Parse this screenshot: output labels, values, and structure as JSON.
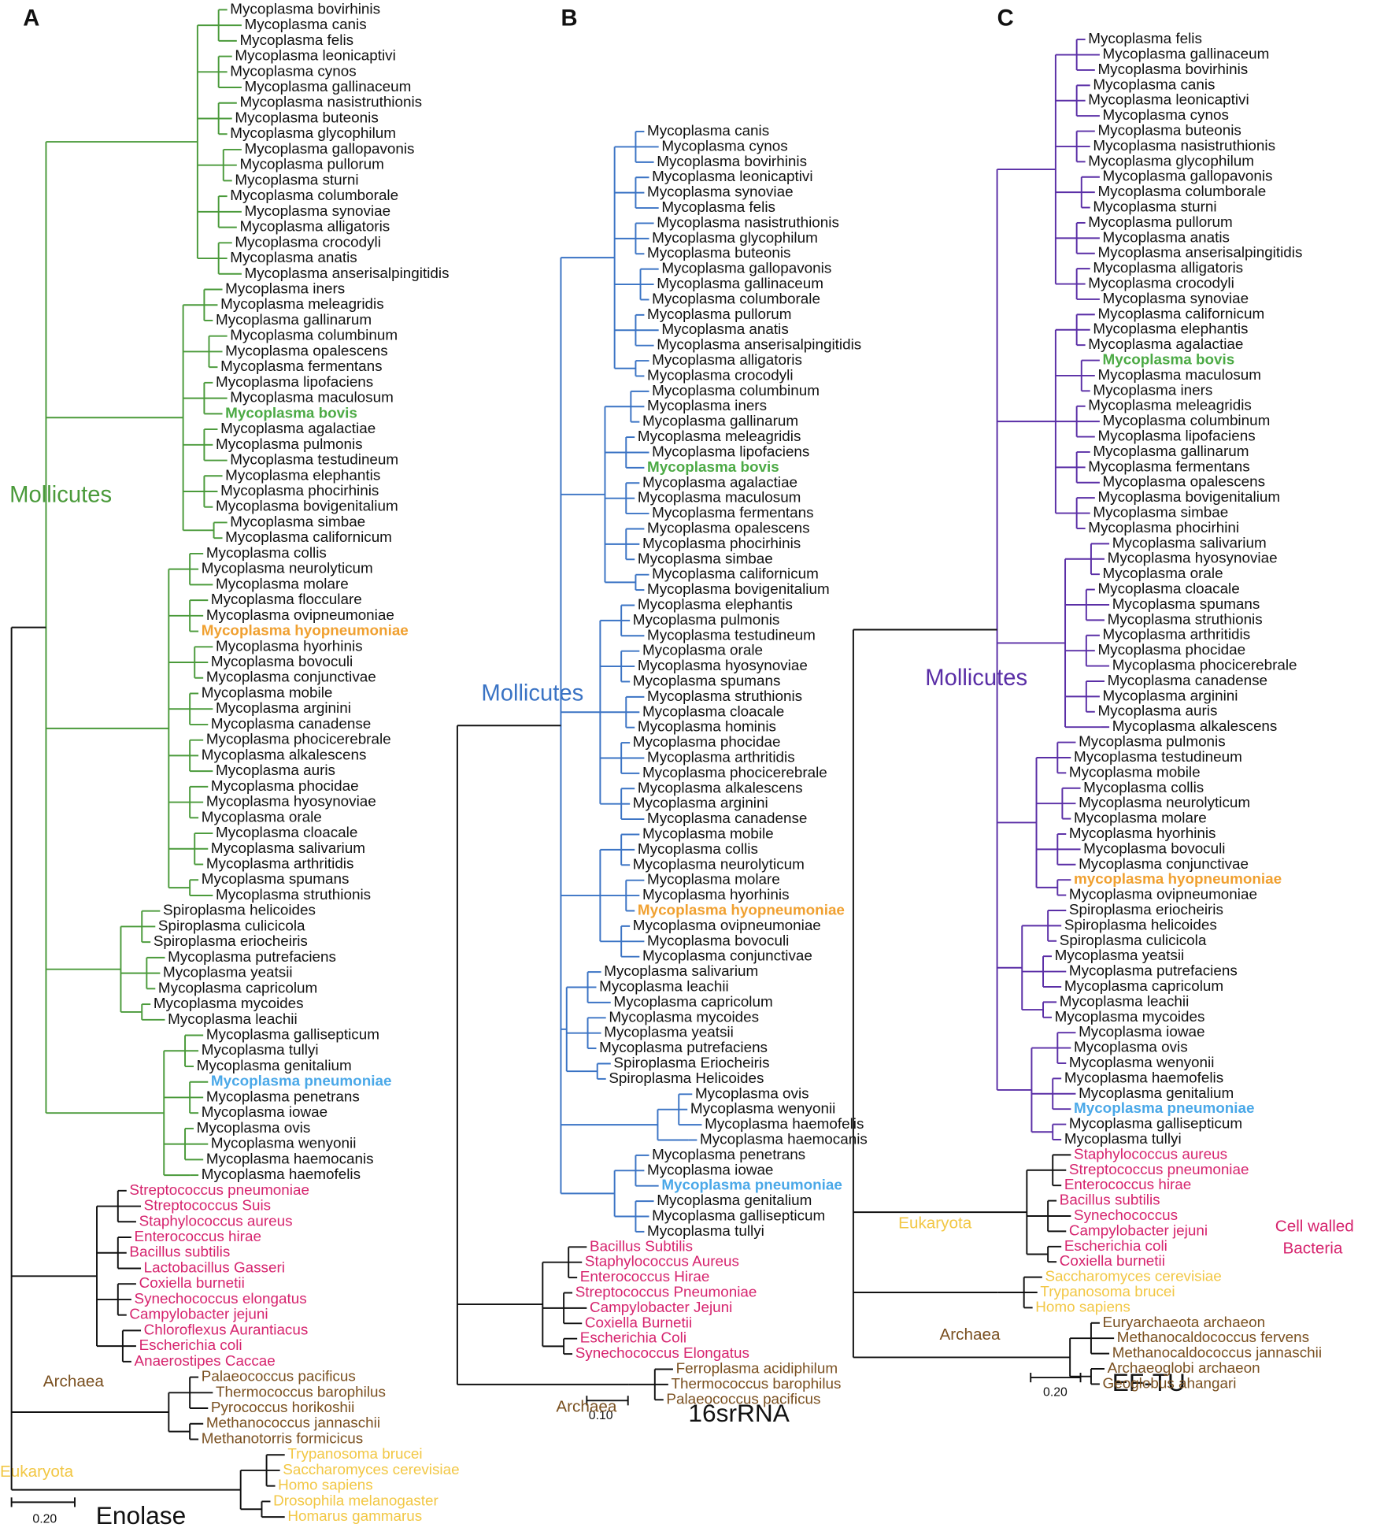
{
  "panels": [
    {
      "letter": "A",
      "title": "Enolase",
      "scale": "0.20",
      "color": "#4a9a3a",
      "clades": [
        {
          "text": "Mollicutes",
          "color": "#4a9a3a"
        },
        {
          "text": "Archaea",
          "color": "#7a5020"
        },
        {
          "text": "Eukaryota",
          "color": "#f2c744"
        }
      ],
      "sections": [
        {
          "color": "#111111",
          "labels": [
            "Mycoplasma bovirhinis",
            "Mycoplasma canis",
            "Mycoplasma felis",
            "Mycoplasma leonicaptivi",
            "Mycoplasma cynos",
            "Mycoplasma gallinaceum",
            "Mycoplasma nasistruthionis",
            "Mycoplasma buteonis",
            "Mycoplasma glycophilum",
            "Mycoplasma gallopavonis",
            "Mycoplasma pullorum",
            "Mycoplasma sturni",
            "Mycoplasma columborale",
            "Mycoplasma synoviae",
            "Mycoplasma alligatoris",
            "Mycoplasma crocodyli",
            "Mycoplasma anatis",
            "Mycoplasma anserisalpingitidis",
            "Mycoplasma iners",
            "Mycoplasma meleagridis",
            "Mycoplasma gallinarum",
            "Mycoplasma columbinum",
            "Mycoplasma opalescens",
            "Mycoplasma fermentans",
            "Mycoplasma lipofaciens",
            "Mycoplasma maculosum"
          ]
        },
        {
          "color": "#4caa45",
          "bold": true,
          "labels": [
            "Mycoplasma bovis"
          ]
        },
        {
          "color": "#111111",
          "labels": [
            "Mycoplasma agalactiae",
            "Mycoplasma pulmonis",
            "Mycoplasma testudineum",
            "Mycoplasma elephantis",
            "Mycoplasma phocirhinis",
            "Mycoplasma bovigenitalium",
            "Mycoplasma simbae",
            "Mycoplasma californicum",
            "Mycoplasma collis",
            "Mycoplasma neurolyticum",
            "Mycoplasma molare",
            "Mycoplasma flocculare",
            "Mycoplasma ovipneumoniae"
          ]
        },
        {
          "color": "#f0a030",
          "bold": true,
          "labels": [
            "Mycoplasma hyopneumoniae"
          ]
        },
        {
          "color": "#111111",
          "labels": [
            "Mycoplasma hyorhinis",
            "Mycoplasma bovoculi",
            "Mycoplasma conjunctivae",
            "Mycoplasma mobile",
            "Mycoplasma arginini",
            "Mycoplasma canadense",
            "Mycoplasma phocicerebrale",
            "Mycoplasma alkalescens",
            "Mycoplasma auris",
            "Mycoplasma phocidae",
            "Mycoplasma hyosynoviae",
            "Mycoplasma orale",
            "Mycoplasma cloacale",
            "Mycoplasma salivarium",
            "Mycoplasma arthritidis",
            "Mycoplasma spumans",
            "Mycoplasma struthionis",
            "Spiroplasma helicoides",
            "Spiroplasma culicicola",
            "Spiroplasma eriocheiris",
            "Mycoplasma putrefaciens",
            "Mycoplasma yeatsii",
            "Mycoplasma capricolum",
            "Mycoplasma mycoides",
            "Mycoplasma leachii",
            "Mycoplasma gallisepticum",
            "Mycoplasma tullyi",
            "Mycoplasma genitalium"
          ]
        },
        {
          "color": "#4aa8e8",
          "bold": true,
          "labels": [
            "Mycoplasma pneumoniae"
          ]
        },
        {
          "color": "#111111",
          "labels": [
            "Mycoplasma penetrans",
            "Mycoplasma iowae",
            "Mycoplasma ovis",
            "Mycoplasma wenyonii",
            "Mycoplasma haemocanis",
            "Mycoplasma haemofelis"
          ]
        },
        {
          "color": "#d6246e",
          "labels": [
            "Streptococcus pneumoniae",
            "Streptococcus Suis",
            "Staphylococcus aureus",
            "Enterococcus hirae",
            "Bacillus subtilis",
            "Lactobacillus Gasseri",
            "Coxiella burnetii",
            "Synechococcus elongatus",
            "Campylobacter jejuni",
            "Chloroflexus Aurantiacus",
            "Escherichia coli",
            "Anaerostipes Caccae"
          ]
        },
        {
          "color": "#7a5020",
          "labels": [
            "Palaeococcus pacificus",
            "Thermococcus barophilus",
            "Pyrococcus horikoshii",
            "Methanococcus jannaschii",
            "Methanotorris formicicus"
          ]
        },
        {
          "color": "#f2c744",
          "labels": [
            "Trypanosoma brucei",
            "Saccharomyces cerevisiae",
            "Homo sapiens",
            "Drosophila melanogaster",
            "Homarus gammarus"
          ]
        }
      ]
    },
    {
      "letter": "B",
      "title": "16srRNA",
      "scale": "0.10",
      "color": "#3a73c4",
      "clades": [
        {
          "text": "Mollicutes",
          "color": "#3a73c4"
        },
        {
          "text": "Archaea",
          "color": "#7a5020"
        }
      ],
      "sections": [
        {
          "color": "#111111",
          "labels": [
            "Mycoplasma canis",
            "Mycoplasma cynos",
            "Mycoplasma bovirhinis",
            "Mycoplasma leonicaptivi",
            "Mycoplasma synoviae",
            "Mycoplasma felis",
            "Mycoplasma nasistruthionis",
            "Mycoplasma glycophilum",
            "Mycoplasma buteonis",
            "Mycoplasma gallopavonis",
            "Mycoplasma gallinaceum",
            "Mycoplasma columborale",
            "Mycoplasma pullorum",
            "Mycoplasma anatis",
            "Mycoplasma anserisalpingitidis",
            "Mycoplasma alligatoris",
            "Mycoplasma crocodyli",
            "Mycoplasma columbinum",
            "Mycoplasma iners",
            "Mycoplasma gallinarum",
            "Mycoplasma meleagridis",
            "Mycoplasma lipofaciens"
          ]
        },
        {
          "color": "#4caa45",
          "bold": true,
          "labels": [
            "Mycoplasma bovis"
          ]
        },
        {
          "color": "#111111",
          "labels": [
            "Mycoplasma agalactiae",
            "Mycoplasma maculosum",
            "Mycoplasma fermentans",
            "Mycoplasma opalescens",
            "Mycoplasma phocirhinis",
            "Mycoplasma simbae",
            "Mycoplasma californicum",
            "Mycoplasma bovigenitalium",
            "Mycoplasma elephantis",
            "Mycoplasma pulmonis",
            "Mycoplasma testudineum",
            "Mycoplasma orale",
            "Mycoplasma hyosynoviae",
            "Mycoplasma spumans",
            "Mycoplasma struthionis",
            "Mycoplasma cloacale",
            "Mycoplasma hominis",
            "Mycoplasma phocidae",
            "Mycoplasma arthritidis",
            "Mycoplasma phocicerebrale",
            "Mycoplasma alkalescens",
            "Mycoplasma arginini",
            "Mycoplasma canadense",
            "Mycoplasma mobile",
            "Mycoplasma collis",
            "Mycoplasma neurolyticum",
            "Mycoplasma molare",
            "Mycoplasma hyorhinis"
          ]
        },
        {
          "color": "#f0a030",
          "bold": true,
          "labels": [
            "Mycoplasma hyopneumoniae"
          ]
        },
        {
          "color": "#111111",
          "labels": [
            "Mycoplasma ovipneumoniae",
            "Mycoplasma bovoculi",
            "Mycoplasma conjunctivae",
            "Mycoplasma salivarium",
            "Mycoplasma leachii",
            "Mycoplasma capricolum",
            "Mycoplasma mycoides",
            "Mycoplasma yeatsii",
            "Mycoplasma putrefaciens",
            "Spiroplasma Eriocheiris",
            "Spiroplasma Helicoides",
            "Mycoplasma ovis",
            "Mycoplasma wenyonii",
            "Mycoplasma haemofelis",
            "Mycoplasma haemocanis",
            "Mycoplasma penetrans",
            "Mycoplasma iowae"
          ]
        },
        {
          "color": "#4aa8e8",
          "bold": true,
          "labels": [
            "Mycoplasma pneumoniae"
          ]
        },
        {
          "color": "#111111",
          "labels": [
            "Mycoplasma genitalium",
            "Mycoplasma gallisepticum",
            "Mycoplasma tullyi"
          ]
        },
        {
          "color": "#d6246e",
          "labels": [
            "Bacillus Subtilis",
            "Staphylococcus Aureus",
            "Enterococcus Hirae",
            "Streptococcus Pneumoniae",
            "Campylobacter Jejuni",
            "Coxiella Burnetii",
            "Escherichia Coli",
            "Synechococcus Elongatus"
          ]
        },
        {
          "color": "#7a5020",
          "labels": [
            "Ferroplasma acidiphilum",
            "Thermococcus barophilus",
            "Palaeococcus pacificus"
          ]
        }
      ]
    },
    {
      "letter": "C",
      "title": "EF-TU",
      "scale": "0.20",
      "color": "#5a2ea6",
      "clades": [
        {
          "text": "Mollicutes",
          "color": "#5a2ea6"
        },
        {
          "text": "Eukaryota",
          "color": "#f2c744"
        },
        {
          "text": "Archaea",
          "color": "#7a5020"
        },
        {
          "text": "Cell walled",
          "color": "#d6246e"
        },
        {
          "text": "Bacteria",
          "color": "#d6246e"
        }
      ],
      "sections": [
        {
          "color": "#111111",
          "labels": [
            "Mycoplasma felis",
            "Mycoplasma gallinaceum",
            "Mycoplasma bovirhinis",
            "Mycoplasma canis",
            "Mycoplasma leonicaptivi",
            "Mycoplasma cynos",
            "Mycoplasma buteonis",
            "Mycoplasma nasistruthionis",
            "Mycoplasma glycophilum",
            "Mycoplasma gallopavonis",
            "Mycoplasma columborale",
            "Mycoplasma sturni",
            "Mycoplasma pullorum",
            "Mycoplasma anatis",
            "Mycoplasma anserisalpingitidis",
            "Mycoplasma alligatoris",
            "Mycoplasma crocodyli",
            "Mycoplasma synoviae",
            "Mycoplasma californicum",
            "Mycoplasma elephantis",
            "Mycoplasma agalactiae"
          ]
        },
        {
          "color": "#4caa45",
          "bold": true,
          "labels": [
            "Mycoplasma bovis"
          ]
        },
        {
          "color": "#111111",
          "labels": [
            "Mycoplasma maculosum",
            "Mycoplasma iners",
            "Mycoplasma meleagridis",
            "Mycoplasma columbinum",
            "Mycoplasma lipofaciens",
            "Mycoplasma gallinarum",
            "Mycoplasma fermentans",
            "Mycoplasma opalescens",
            "Mycoplasma bovigenitalium",
            "Mycoplasma simbae",
            "Mycoplasma phocirhini",
            "Mycoplasma salivarium",
            "Mycoplasma hyosynoviae",
            "Mycoplasma orale",
            "Mycoplasma cloacale",
            "Mycoplasma spumans",
            "Mycoplasma struthionis",
            "Mycoplasma arthritidis",
            "Mycoplasma phocidae",
            "Mycoplasma phocicerebrale",
            "Mycoplasma canadense",
            "Mycoplasma arginini",
            "Mycoplasma auris",
            "Mycoplasma alkalescens",
            "Mycoplasma pulmonis",
            "Mycoplasma testudineum",
            "Mycoplasma mobile",
            "Mycoplasma collis",
            "Mycoplasma neurolyticum",
            "Mycoplasma molare",
            "Mycoplasma hyorhinis",
            "Mycoplasma bovoculi",
            "Mycoplasma conjunctivae"
          ]
        },
        {
          "color": "#f0a030",
          "bold": true,
          "labels": [
            "mycoplasma hyopneumoniae"
          ]
        },
        {
          "color": "#111111",
          "labels": [
            "Mycoplasma ovipneumoniae",
            "Spiroplasma eriocheiris",
            "Spiroplasma helicoides",
            "Spiroplasma culicicola",
            "Mycoplasma yeatsii",
            "Mycoplasma putrefaciens",
            "Mycoplasma capricolum",
            "Mycoplasma leachii",
            "Mycoplasma mycoides",
            "Mycoplasma iowae",
            "Mycoplasma ovis",
            "Mycoplasma wenyonii",
            "Mycoplasma haemofelis",
            "Mycoplasma genitalium"
          ]
        },
        {
          "color": "#4aa8e8",
          "bold": true,
          "labels": [
            "Mycoplasma pneumoniae"
          ]
        },
        {
          "color": "#111111",
          "labels": [
            "Mycoplasma gallisepticum",
            "Mycoplasma tullyi"
          ]
        },
        {
          "color": "#d6246e",
          "labels": [
            "Staphylococcus aureus",
            "Streptococcus pneumoniae",
            "Enterococcus hirae",
            "Bacillus subtilis",
            "Synechococcus",
            "Campylobacter jejuni",
            "Escherichia coli",
            "Coxiella burnetii"
          ]
        },
        {
          "color": "#f2c744",
          "labels": [
            "Saccharomyces cerevisiae",
            "Trypanosoma brucei",
            "Homo sapiens"
          ]
        },
        {
          "color": "#7a5020",
          "labels": [
            "Euryarchaeota archaeon",
            "Methanocaldococcus fervens",
            "Methanocaldococcus jannaschii",
            "Archaeoglobi archaeon",
            "Geoglobus ahangari"
          ]
        }
      ]
    }
  ]
}
